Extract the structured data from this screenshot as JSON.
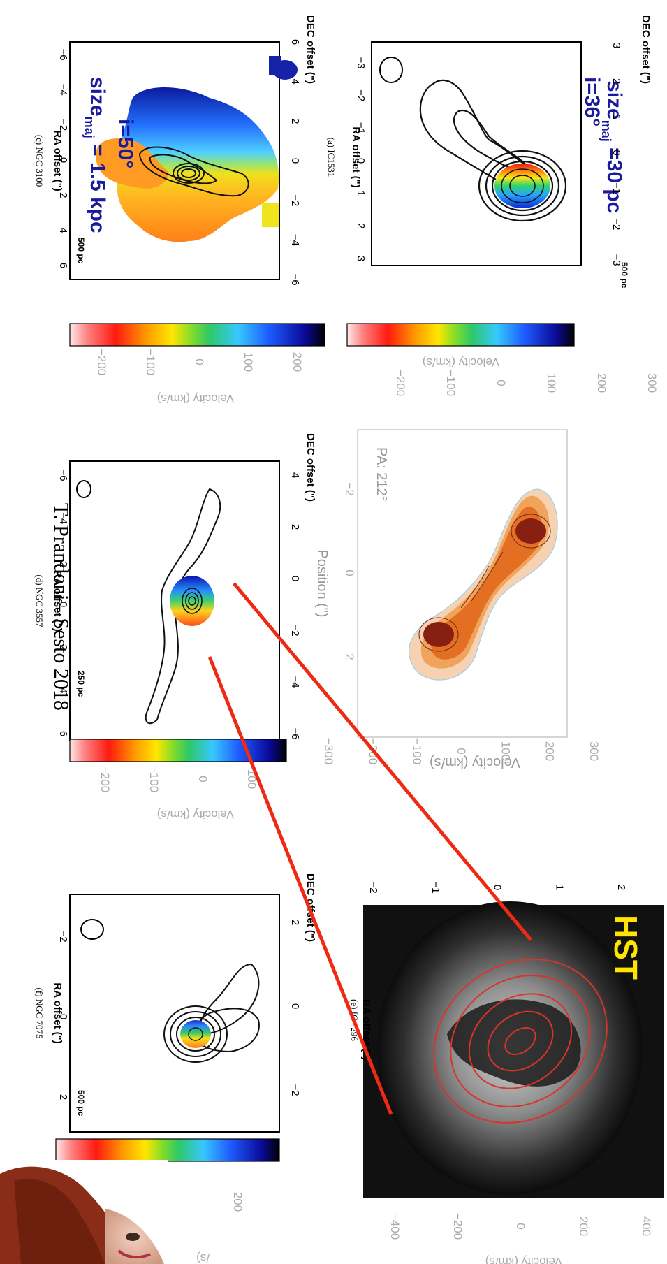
{
  "panels": {
    "a": {
      "caption": "(a) IC1531",
      "ylabel": "DEC offset (\")",
      "xlabel": "RA offset (\")",
      "yticks": [
        "3",
        "2",
        "1",
        "0",
        "−1",
        "−2",
        "−3"
      ],
      "xticks": [
        "−3",
        "−2",
        "−1",
        "0",
        "1",
        "2",
        "3"
      ],
      "scale": "500 pc",
      "annot1": "size",
      "annot1_sub": "maj",
      "annot1_rest": " =30 pc",
      "annot2": "i=36°",
      "cbar_label": "Velocity (km/s)",
      "cbar_ticks": [
        "−200",
        "−100",
        "0",
        "100",
        "200",
        "300"
      ]
    },
    "c": {
      "caption": "(c) NGC 3100",
      "ylabel": "DEC offset (\")",
      "xlabel": "RA offset (\")",
      "yticks": [
        "6",
        "4",
        "2",
        "0",
        "−2",
        "−4",
        "−6"
      ],
      "xticks": [
        "−6",
        "−4",
        "−2",
        "0",
        "2",
        "4",
        "6"
      ],
      "scale": "500 pc",
      "annot1": "i=50°",
      "annot2": "size",
      "annot2_sub": "maj",
      "annot2_rest": " = 1.5 kpc",
      "cbar_label": "Velocity (km/s)",
      "cbar_ticks": [
        "−200",
        "−100",
        "0",
        "100",
        "200"
      ]
    },
    "pv": {
      "pa_label": "PA: 212°",
      "position_label": "Position (\")",
      "velocity_label": "Velocity (km/s)",
      "position_ticks": [
        "−2",
        "0",
        "2"
      ],
      "velocity_ticks": [
        "300",
        "200",
        "100",
        "0",
        "−100",
        "−200",
        "−300"
      ]
    },
    "d": {
      "caption": "(d) NGC 3557",
      "ylabel": "DEC offset (\")",
      "xlabel": "RA offset (\")",
      "yticks": [
        "4",
        "2",
        "0",
        "−2",
        "−4",
        "−6"
      ],
      "xticks": [
        "−6",
        "−4",
        "−2",
        "0",
        "2",
        "4",
        "6"
      ],
      "scale": "250 pc",
      "cbar_label": "Velocity (km/s)",
      "cbar_ticks": [
        "−200",
        "−100",
        "0",
        "100"
      ]
    },
    "f": {
      "caption": "(f) NGC 7075",
      "ylabel": "DEC offset (\")",
      "xlabel": "RA offset (\")",
      "yticks": [
        "2",
        "0",
        "−2"
      ],
      "xticks": [
        "−2",
        "0",
        "2"
      ],
      "scale": "500 pc",
      "cbar_label": "/s)",
      "cbar_ticks": [
        "200"
      ]
    },
    "hst": {
      "label": "HST",
      "caption": "(e) IC 4296",
      "xlabel": "RA offset (\")",
      "yticks": [
        "2",
        "1",
        "0",
        "−1",
        "−2"
      ],
      "cbar_label": "Velocity (km/s)",
      "cbar_ticks": [
        "−400",
        "−200",
        "0",
        "200",
        "400"
      ]
    }
  },
  "footer": {
    "text": "T. Prandoni - Sesto 2018"
  },
  "colors": {
    "accent_label": "#1a1a9e",
    "hst_label": "#ffe400",
    "connector": "#ee2a12"
  }
}
